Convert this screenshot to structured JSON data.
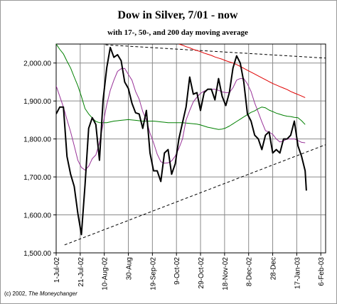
{
  "chart_data": {
    "type": "line",
    "title": "Dow in Silver, 7/01 - now",
    "subtitle": "with 17-, 50-, and 200 day moving average",
    "copyright": "(c) 2002,",
    "copyright_source": "The Moneychanger",
    "x": [
      "2002-07-01",
      "2002-07-04",
      "2002-07-07",
      "2002-07-10",
      "2002-07-13",
      "2002-07-16",
      "2002-07-19",
      "2002-07-22",
      "2002-07-25",
      "2002-07-28",
      "2002-07-31",
      "2002-08-03",
      "2002-08-06",
      "2002-08-09",
      "2002-08-12",
      "2002-08-15",
      "2002-08-18",
      "2002-08-21",
      "2002-08-24",
      "2002-08-27",
      "2002-08-30",
      "2002-09-02",
      "2002-09-05",
      "2002-09-08",
      "2002-09-11",
      "2002-09-14",
      "2002-09-17",
      "2002-09-20",
      "2002-09-23",
      "2002-09-26",
      "2002-09-29",
      "2002-10-02",
      "2002-10-05",
      "2002-10-08",
      "2002-10-11",
      "2002-10-14",
      "2002-10-17",
      "2002-10-20",
      "2002-10-23",
      "2002-10-26",
      "2002-10-29",
      "2002-11-01",
      "2002-11-04",
      "2002-11-07",
      "2002-11-10",
      "2002-11-13",
      "2002-11-16",
      "2002-11-19",
      "2002-11-22",
      "2002-11-25",
      "2002-11-28",
      "2002-12-01",
      "2002-12-04",
      "2002-12-07",
      "2002-12-10",
      "2002-12-13",
      "2002-12-16",
      "2002-12-19",
      "2002-12-22",
      "2002-12-25",
      "2002-12-28",
      "2002-12-31",
      "2003-01-03",
      "2003-01-06",
      "2003-01-09",
      "2003-01-12",
      "2003-01-15",
      "2003-01-18",
      "2003-01-21",
      "2003-01-24",
      "2003-01-25"
    ],
    "series": [
      {
        "name": "Dow in Silver",
        "color": "#000000",
        "width": 2,
        "values": [
          1866,
          1884,
          1884,
          1754,
          1707,
          1675,
          1604,
          1548,
          1679,
          1828,
          1856,
          1838,
          1744,
          1903,
          1987,
          2041,
          2015,
          2022,
          2006,
          1950,
          1933,
          1894,
          1869,
          1866,
          1828,
          1875,
          1763,
          1716,
          1716,
          1688,
          1763,
          1772,
          1707,
          1735,
          1800,
          1843,
          1884,
          1963,
          1918,
          1922,
          1875,
          1922,
          1931,
          1931,
          1903,
          1959,
          1912,
          1888,
          1922,
          1987,
          2019,
          2000,
          1950,
          1866,
          1847,
          1810,
          1800,
          1772,
          1810,
          1819,
          1763,
          1772,
          1763,
          1800,
          1800,
          1810,
          1847,
          1782,
          1754,
          1716,
          1664
        ]
      },
      {
        "name": "17 day moving average",
        "color": "#993399",
        "width": 1,
        "values": [
          1940,
          1912,
          1884,
          1851,
          1819,
          1782,
          1744,
          1725,
          1718,
          1728,
          1748,
          1758,
          1790,
          1840,
          1890,
          1928,
          1955,
          1978,
          1985,
          1986,
          1970,
          1955,
          1925,
          1905,
          1872,
          1850,
          1815,
          1790,
          1760,
          1740,
          1736,
          1737,
          1742,
          1755,
          1775,
          1800,
          1850,
          1875,
          1898,
          1910,
          1920,
          1926,
          1930,
          1931,
          1931,
          1928,
          1924,
          1922,
          1922,
          1935,
          1955,
          1959,
          1959,
          1945,
          1925,
          1895,
          1870,
          1845,
          1822,
          1818,
          1812,
          1800,
          1792,
          1795,
          1800,
          1800,
          1800,
          1796,
          1791,
          1790,
          null
        ]
      },
      {
        "name": "50 day moving average",
        "color": "#008000",
        "width": 1,
        "values": [
          2050,
          2036,
          2024,
          2005,
          1987,
          1963,
          1940,
          1912,
          1880,
          1866,
          1855,
          1846,
          1843,
          1843,
          1843,
          1845,
          1847,
          1848,
          1849,
          1850,
          1851,
          1850,
          1849,
          1848,
          1847,
          1847,
          1847,
          1847,
          1846,
          1845,
          1844,
          1843,
          1843,
          1843,
          1843,
          1843,
          1842,
          1841,
          1840,
          1839,
          1837,
          1834,
          1831,
          1829,
          1827,
          1825,
          1826,
          1829,
          1834,
          1840,
          1846,
          1852,
          1858,
          1864,
          1870,
          1874,
          1880,
          1884,
          1882,
          1876,
          1872,
          1868,
          1865,
          1862,
          1860,
          1859,
          1857,
          1856,
          1848,
          1838,
          null
        ]
      },
      {
        "name": "200 day moving average",
        "color": "#e00000",
        "width": 1,
        "values": [
          null,
          null,
          null,
          null,
          null,
          null,
          null,
          null,
          null,
          null,
          null,
          null,
          null,
          null,
          null,
          null,
          null,
          null,
          null,
          null,
          null,
          null,
          null,
          null,
          null,
          null,
          null,
          null,
          null,
          null,
          null,
          null,
          null,
          null,
          2050,
          2047,
          2043,
          2040,
          2036,
          2033,
          2030,
          2026,
          2023,
          2020,
          2016,
          2013,
          2010,
          2006,
          2003,
          2000,
          1996,
          1991,
          1986,
          1981,
          1976,
          1971,
          1966,
          1961,
          1956,
          1951,
          1946,
          1942,
          1938,
          1934,
          1930,
          1925,
          1921,
          1917,
          1913,
          1909,
          null
        ]
      }
    ],
    "trendlines": [
      {
        "x": [
          "2002-08-11",
          "2003-02-10"
        ],
        "values": [
          2048,
          2013
        ],
        "color": "#000000",
        "style": "dashed"
      },
      {
        "x": [
          "2002-07-08",
          "2003-02-10"
        ],
        "values": [
          1521,
          1785
        ],
        "color": "#000000",
        "style": "dashed"
      }
    ],
    "xlim": [
      "2002-07-01",
      "2003-02-10"
    ],
    "xticks": [
      {
        "value": "2002-07-01",
        "label": "1-Jul-02"
      },
      {
        "value": "2002-07-21",
        "label": "21-Jul-02"
      },
      {
        "value": "2002-08-10",
        "label": "10-Aug-02"
      },
      {
        "value": "2002-08-30",
        "label": "30-Aug"
      },
      {
        "value": "2002-09-19",
        "label": "19-Sep-02"
      },
      {
        "value": "2002-10-09",
        "label": "9-Oct-02"
      },
      {
        "value": "2002-10-29",
        "label": "29-Oct-02"
      },
      {
        "value": "2002-11-18",
        "label": "18-Nov-02"
      },
      {
        "value": "2002-12-08",
        "label": "8-Dec-02"
      },
      {
        "value": "2002-12-28",
        "label": "28-Dec"
      },
      {
        "value": "2003-01-17",
        "label": "17-Jan-03"
      },
      {
        "value": "2003-02-06",
        "label": "6-Feb-03"
      }
    ],
    "ylim": [
      1500,
      2050
    ],
    "yticks": [
      {
        "value": 1500,
        "label": "1,500.00"
      },
      {
        "value": 1600,
        "label": "1,600.00"
      },
      {
        "value": 1700,
        "label": "1,700.00"
      },
      {
        "value": 1800,
        "label": "1,800.00"
      },
      {
        "value": 1900,
        "label": "1,900.00"
      },
      {
        "value": 2000,
        "label": "2,000.00"
      }
    ],
    "grid": true
  }
}
